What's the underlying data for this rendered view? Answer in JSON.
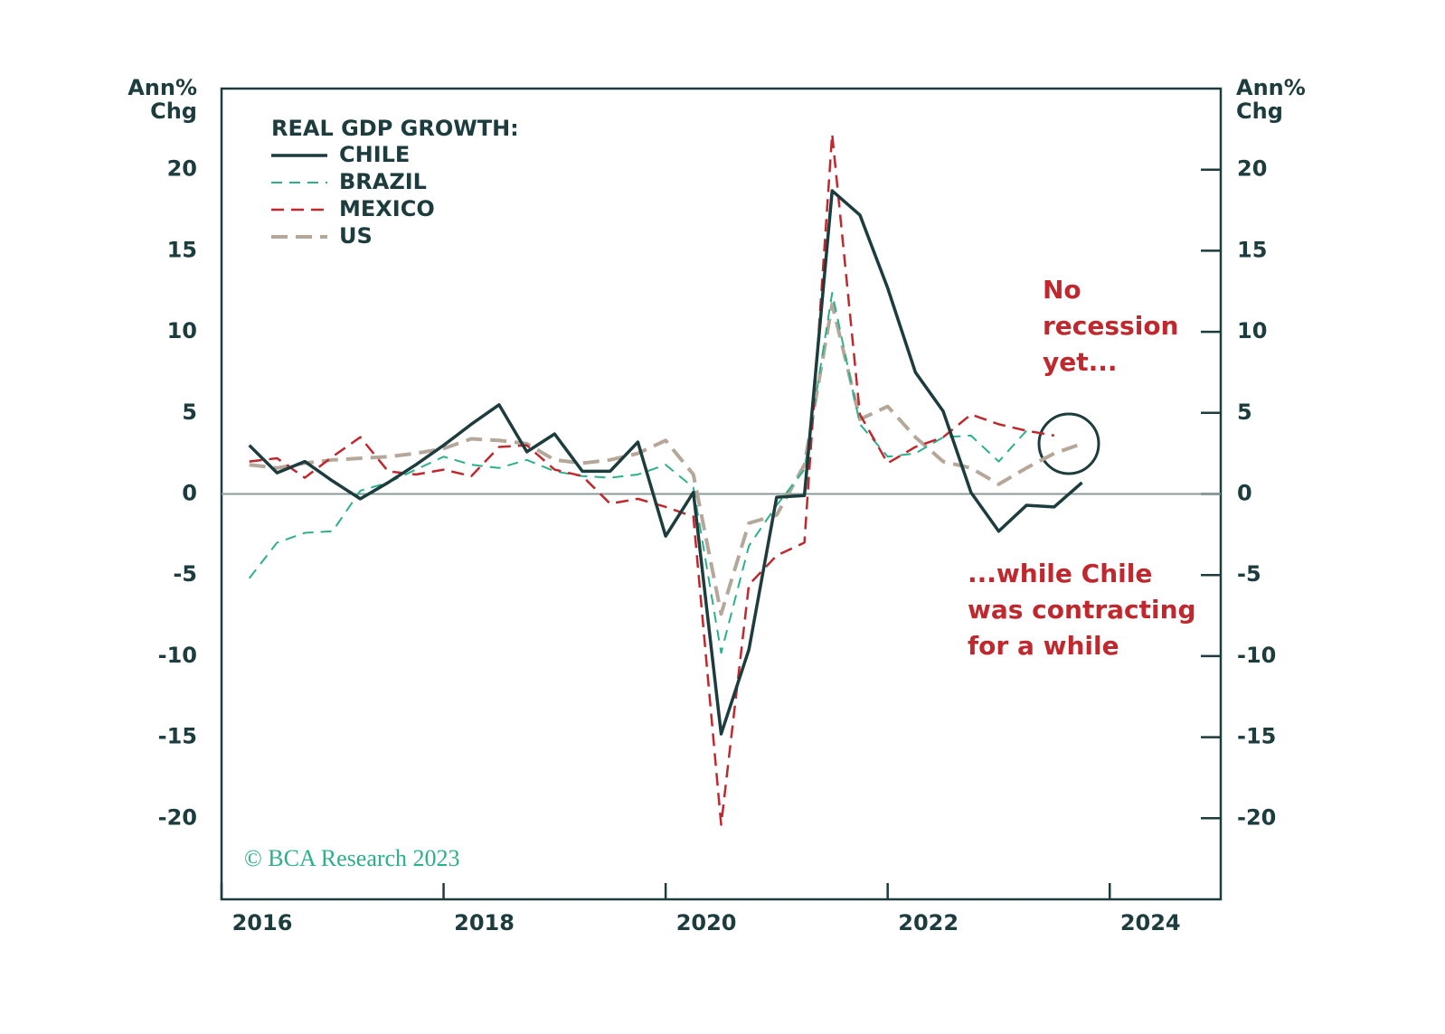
{
  "chart_data": {
    "type": "line",
    "legend_title": "REAL GDP GROWTH:",
    "ylabel": [
      "Ann%",
      "Chg"
    ],
    "y2label": [
      "Ann%",
      "Chg"
    ],
    "x": [
      2016.25,
      2016.5,
      2016.75,
      2017,
      2017.25,
      2017.5,
      2017.75,
      2018,
      2018.25,
      2018.5,
      2018.75,
      2019,
      2019.25,
      2019.5,
      2019.75,
      2020,
      2020.25,
      2020.5,
      2020.75,
      2021,
      2021.25,
      2021.5,
      2021.75,
      2022,
      2022.25,
      2022.5,
      2022.75,
      2023,
      2023.25,
      2023.5,
      2023.75
    ],
    "series": [
      {
        "name": "CHILE",
        "color": "#1d3c3e",
        "values": [
          3.0,
          1.3,
          2.0,
          0.8,
          -0.3,
          0.7,
          1.8,
          3.0,
          4.3,
          5.5,
          2.6,
          3.7,
          1.4,
          1.4,
          3.2,
          -2.6,
          0.1,
          -14.8,
          -9.6,
          -0.2,
          -0.1,
          18.7,
          17.2,
          12.7,
          7.5,
          5.1,
          0.1,
          -2.3,
          -0.7,
          -0.8,
          0.7
        ]
      },
      {
        "name": "BRAZIL",
        "color": "#2bb08a",
        "values": [
          -5.2,
          -3.0,
          -2.4,
          -2.3,
          0.2,
          0.7,
          1.5,
          2.3,
          1.8,
          1.6,
          2.1,
          1.4,
          1.1,
          1.0,
          1.2,
          1.8,
          0.4,
          -9.8,
          -3.2,
          -0.7,
          1.5,
          12.4,
          4.3,
          2.3,
          2.5,
          3.5,
          3.6,
          2.0,
          3.9,
          null,
          null
        ]
      },
      {
        "name": "MEXICO",
        "color": "#c0282e",
        "values": [
          2.0,
          2.2,
          1.0,
          2.3,
          3.5,
          1.4,
          1.2,
          1.5,
          1.1,
          2.9,
          3.0,
          1.5,
          1.1,
          -0.6,
          -0.3,
          -0.8,
          -1.4,
          -20.4,
          -5.6,
          -3.8,
          -3.0,
          22.2,
          4.9,
          1.9,
          2.9,
          3.5,
          4.9,
          4.3,
          3.9,
          3.6,
          null
        ]
      },
      {
        "name": "US",
        "color": "#b5a89a",
        "values": [
          1.8,
          1.6,
          1.9,
          2.1,
          2.2,
          2.3,
          2.5,
          2.8,
          3.4,
          3.3,
          3.1,
          2.1,
          1.9,
          2.1,
          2.5,
          3.3,
          1.2,
          -7.4,
          -1.8,
          -1.3,
          1.8,
          11.7,
          4.6,
          5.4,
          3.5,
          2.0,
          1.6,
          0.6,
          1.6,
          2.5,
          3.1
        ]
      }
    ],
    "xlim": [
      2016,
      2025
    ],
    "xticks": [
      2016,
      2018,
      2020,
      2022,
      2024
    ],
    "ylim": [
      -25,
      25
    ],
    "yticks": [
      -20,
      -15,
      -10,
      -5,
      0,
      5,
      10,
      15,
      20
    ],
    "y2lim": [
      -25,
      25
    ],
    "y2ticks": [
      -20,
      -15,
      -10,
      -5,
      0,
      5,
      10,
      15,
      20
    ],
    "reference_line": 0,
    "annotations": [
      [
        "No",
        "recession",
        "yet..."
      ],
      [
        "...while Chile",
        "was contracting",
        "for a while"
      ]
    ],
    "source": "© BCA Research 2023"
  }
}
